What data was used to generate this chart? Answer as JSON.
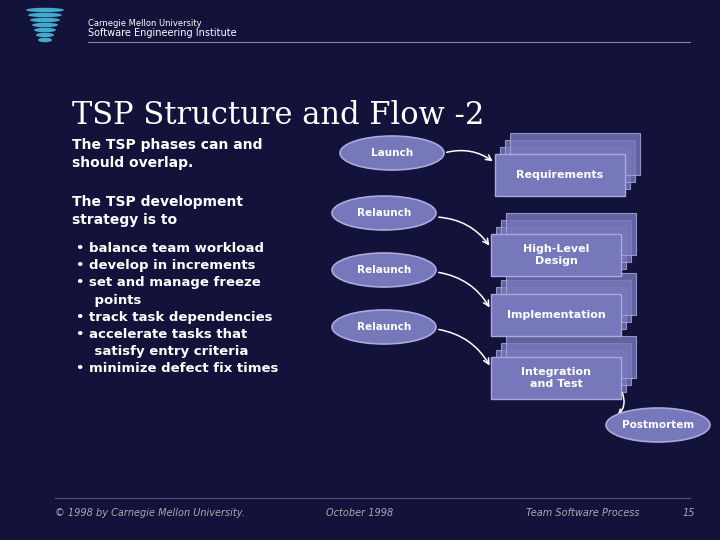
{
  "bg_color": "#12123a",
  "title": "TSP Structure and Flow -2",
  "title_color": "#ffffff",
  "title_fontsize": 22,
  "header_line_color": "#888899",
  "ellipse_color": "#7777bb",
  "ellipse_edge_color": "#aaaadd",
  "rect_color": "#7777bb",
  "rect_edge_color": "#aaaadd",
  "footer_left": "© 1998 by Carnegie Mellon University.",
  "footer_center": "October 1998",
  "footer_right": "Team Software Process",
  "footer_num": "15",
  "footer_color": "#aaaaaa",
  "footer_fontsize": 7,
  "logo_text1": "Carnegie Mellon University",
  "logo_text2": "Software Engineering Institute"
}
